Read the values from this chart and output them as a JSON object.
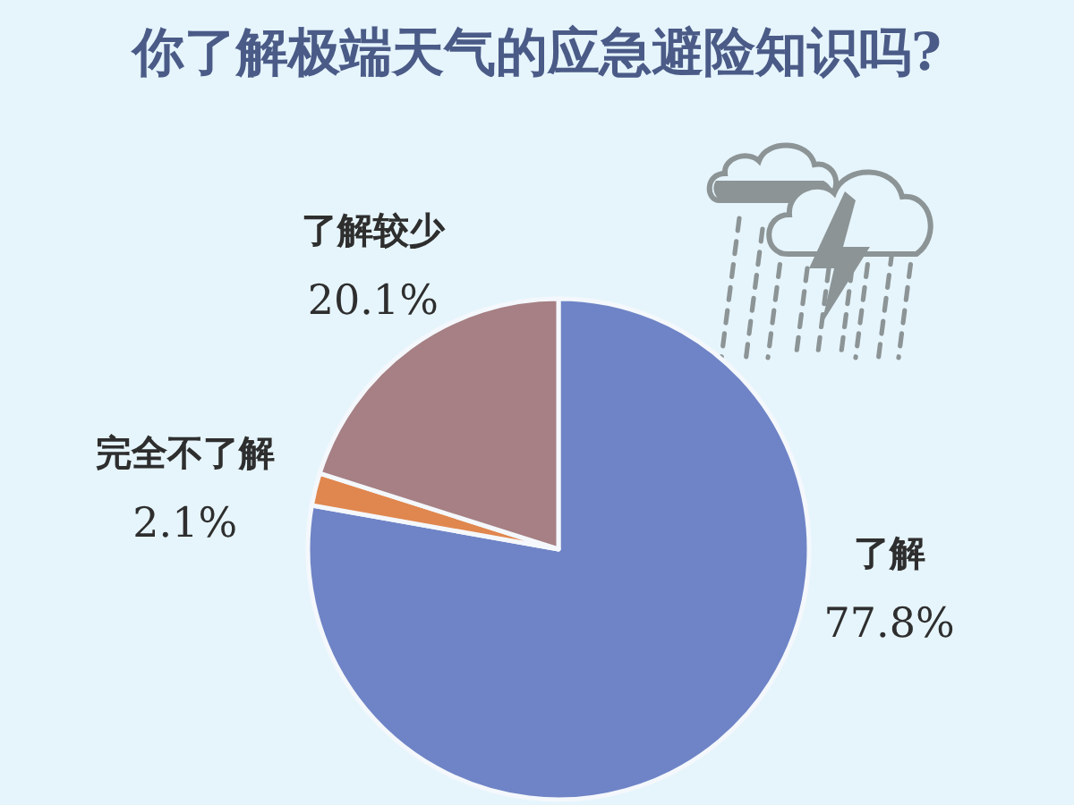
{
  "chart_data": {
    "type": "pie",
    "title": "你了解极端天气的应急避险知识吗?",
    "categories": [
      "了解",
      "完全不了解",
      "了解较少"
    ],
    "values": [
      77.8,
      2.1,
      20.1
    ],
    "value_labels": [
      "77.8%",
      "2.1%",
      "20.1%"
    ],
    "colors": [
      "#6f84c6",
      "#e0874f",
      "#a68084"
    ],
    "legend": false
  }
}
